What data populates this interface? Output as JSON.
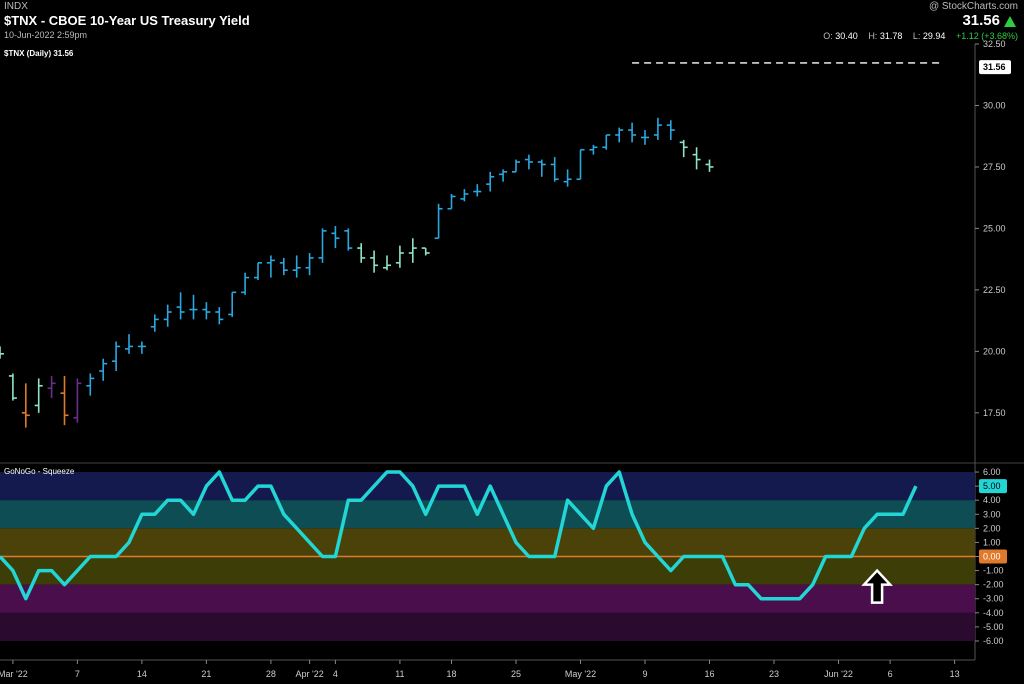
{
  "header": {
    "exchange": "INDX",
    "title": "$TNX - CBOE 10-Year US Treasury Yield",
    "datetime": "10-Jun-2022 2:59pm",
    "copyright": "@ StockCharts.com",
    "last": "31.56",
    "ohlc": {
      "o_label": "O:",
      "o": "30.40",
      "h_label": "H:",
      "h": "31.78",
      "l_label": "L:",
      "l": "29.94",
      "change": "+1.12 (+3.68%)"
    }
  },
  "colors": {
    "background": "#000000",
    "bar_strong_go": "#29a8e0",
    "bar_weak_go": "#8fe4c4",
    "bar_go_fish": "#e07a2a",
    "bar_nogo": "#6a2e8c",
    "go_trend_triangle": "#ff1a1a",
    "go_count_dot": "#22ee22",
    "oscillator_line": "#22d6d6",
    "oscillator_zero": "#e07a2a",
    "squeeze_arrow": "#ffffff"
  },
  "chart_data": [
    {
      "type": "ohlc",
      "title": "$TNX (Daily) 31.56",
      "ylim": [
        15.5,
        32.5
      ],
      "yticks": [
        17.5,
        20,
        22.5,
        25,
        27.5,
        30,
        32.5
      ],
      "ytick_labels": [
        "17.50",
        "20.00",
        "22.50",
        "25.00",
        "27.50",
        "30.00",
        "32.50"
      ],
      "last_price_label": "31.56",
      "x_labels": [
        {
          "i": 1,
          "text": "Mar '22"
        },
        {
          "i": 6,
          "text": "7"
        },
        {
          "i": 11,
          "text": "14"
        },
        {
          "i": 16,
          "text": "21"
        },
        {
          "i": 21,
          "text": "28"
        },
        {
          "i": 24,
          "text": "Apr '22"
        },
        {
          "i": 26,
          "text": "4"
        },
        {
          "i": 31,
          "text": "11"
        },
        {
          "i": 35,
          "text": "18"
        },
        {
          "i": 40,
          "text": "25"
        },
        {
          "i": 45,
          "text": "May '22"
        },
        {
          "i": 50,
          "text": "9"
        },
        {
          "i": 55,
          "text": "16"
        },
        {
          "i": 60,
          "text": "23"
        },
        {
          "i": 65,
          "text": "Jun '22"
        },
        {
          "i": 69,
          "text": "6"
        },
        {
          "i": 74,
          "text": "13"
        }
      ],
      "resistance_level": 31.73,
      "resistance_from_i": 49,
      "resistance_to_i": 73,
      "bars": [
        {
          "o": 20.0,
          "h": 20.2,
          "l": 19.7,
          "c": 19.9,
          "k": "w"
        },
        {
          "o": 19.0,
          "h": 19.1,
          "l": 18.0,
          "c": 18.1,
          "k": "w"
        },
        {
          "o": 17.5,
          "h": 18.7,
          "l": 16.9,
          "c": 17.4,
          "k": "f"
        },
        {
          "o": 17.8,
          "h": 18.9,
          "l": 17.5,
          "c": 18.6,
          "k": "w"
        },
        {
          "o": 18.5,
          "h": 19.0,
          "l": 18.1,
          "c": 18.7,
          "k": "n"
        },
        {
          "o": 18.3,
          "h": 19.0,
          "l": 17.0,
          "c": 17.4,
          "k": "f"
        },
        {
          "o": 17.3,
          "h": 18.9,
          "l": 17.1,
          "c": 18.7,
          "k": "n"
        },
        {
          "o": 18.6,
          "h": 19.1,
          "l": 18.2,
          "c": 18.9,
          "k": "s"
        },
        {
          "o": 19.2,
          "h": 19.7,
          "l": 18.8,
          "c": 19.5,
          "k": "s"
        },
        {
          "o": 19.6,
          "h": 20.4,
          "l": 19.2,
          "c": 20.2,
          "k": "s"
        },
        {
          "o": 20.1,
          "h": 20.7,
          "l": 19.9,
          "c": 20.2,
          "k": "s"
        },
        {
          "o": 20.2,
          "h": 20.4,
          "l": 19.9,
          "c": 20.2,
          "k": "s"
        },
        {
          "o": 21.0,
          "h": 21.5,
          "l": 20.8,
          "c": 21.3,
          "k": "s"
        },
        {
          "o": 21.3,
          "h": 21.9,
          "l": 21.0,
          "c": 21.6,
          "k": "s"
        },
        {
          "o": 21.8,
          "h": 22.4,
          "l": 21.3,
          "c": 21.6,
          "k": "s"
        },
        {
          "o": 21.7,
          "h": 22.3,
          "l": 21.3,
          "c": 21.7,
          "k": "s"
        },
        {
          "o": 21.7,
          "h": 22.0,
          "l": 21.3,
          "c": 21.6,
          "k": "s"
        },
        {
          "o": 21.6,
          "h": 21.8,
          "l": 21.1,
          "c": 21.3,
          "k": "s"
        },
        {
          "o": 21.5,
          "h": 22.4,
          "l": 21.4,
          "c": 22.4,
          "k": "s"
        },
        {
          "o": 22.4,
          "h": 23.2,
          "l": 22.3,
          "c": 23.0,
          "k": "s"
        },
        {
          "o": 23.0,
          "h": 23.6,
          "l": 22.9,
          "c": 23.6,
          "k": "s"
        },
        {
          "o": 23.6,
          "h": 23.9,
          "l": 23.0,
          "c": 23.7,
          "k": "s"
        },
        {
          "o": 23.6,
          "h": 23.8,
          "l": 23.1,
          "c": 23.3,
          "k": "s"
        },
        {
          "o": 23.3,
          "h": 23.9,
          "l": 23.0,
          "c": 23.4,
          "k": "s"
        },
        {
          "o": 23.4,
          "h": 24.0,
          "l": 23.1,
          "c": 23.8,
          "k": "s"
        },
        {
          "o": 23.8,
          "h": 25.0,
          "l": 23.6,
          "c": 24.9,
          "k": "s"
        },
        {
          "o": 24.8,
          "h": 25.1,
          "l": 24.2,
          "c": 24.6,
          "k": "s"
        },
        {
          "o": 24.9,
          "h": 25.0,
          "l": 24.1,
          "c": 24.2,
          "k": "s"
        },
        {
          "o": 24.2,
          "h": 24.4,
          "l": 23.6,
          "c": 23.8,
          "k": "w"
        },
        {
          "o": 23.8,
          "h": 24.1,
          "l": 23.2,
          "c": 23.5,
          "k": "w"
        },
        {
          "o": 23.4,
          "h": 23.9,
          "l": 23.3,
          "c": 23.5,
          "k": "w"
        },
        {
          "o": 23.6,
          "h": 24.3,
          "l": 23.4,
          "c": 24.0,
          "k": "w"
        },
        {
          "o": 24.0,
          "h": 24.6,
          "l": 23.6,
          "c": 24.2,
          "k": "w"
        },
        {
          "o": 24.2,
          "h": 24.2,
          "l": 23.9,
          "c": 24.0,
          "k": "w"
        },
        {
          "o": 24.6,
          "h": 26.0,
          "l": 24.6,
          "c": 25.8,
          "k": "s"
        },
        {
          "o": 25.8,
          "h": 26.4,
          "l": 25.8,
          "c": 26.3,
          "k": "s"
        },
        {
          "o": 26.2,
          "h": 26.6,
          "l": 26.1,
          "c": 26.4,
          "k": "s"
        },
        {
          "o": 26.5,
          "h": 26.8,
          "l": 26.3,
          "c": 26.5,
          "k": "s"
        },
        {
          "o": 26.8,
          "h": 27.3,
          "l": 26.5,
          "c": 27.1,
          "k": "s"
        },
        {
          "o": 27.2,
          "h": 27.4,
          "l": 26.9,
          "c": 27.3,
          "k": "s"
        },
        {
          "o": 27.3,
          "h": 27.8,
          "l": 27.3,
          "c": 27.7,
          "k": "s"
        },
        {
          "o": 27.8,
          "h": 28.0,
          "l": 27.4,
          "c": 27.7,
          "k": "s"
        },
        {
          "o": 27.7,
          "h": 27.8,
          "l": 27.1,
          "c": 27.6,
          "k": "s"
        },
        {
          "o": 27.6,
          "h": 27.9,
          "l": 26.9,
          "c": 27.0,
          "k": "s"
        },
        {
          "o": 26.9,
          "h": 27.4,
          "l": 26.7,
          "c": 27.0,
          "k": "s"
        },
        {
          "o": 27.0,
          "h": 28.2,
          "l": 27.0,
          "c": 28.2,
          "k": "s"
        },
        {
          "o": 28.2,
          "h": 28.4,
          "l": 28.0,
          "c": 28.3,
          "k": "s"
        },
        {
          "o": 28.3,
          "h": 28.8,
          "l": 28.2,
          "c": 28.8,
          "k": "s"
        },
        {
          "o": 28.8,
          "h": 29.1,
          "l": 28.5,
          "c": 29.0,
          "k": "s"
        },
        {
          "o": 29.0,
          "h": 29.3,
          "l": 28.5,
          "c": 28.8,
          "k": "s"
        },
        {
          "o": 28.7,
          "h": 29.0,
          "l": 28.4,
          "c": 28.7,
          "k": "s"
        },
        {
          "o": 28.8,
          "h": 29.5,
          "l": 28.6,
          "c": 29.2,
          "k": "s"
        },
        {
          "o": 29.2,
          "h": 29.4,
          "l": 28.6,
          "c": 29.0,
          "k": "s"
        },
        {
          "o": 28.5,
          "h": 28.6,
          "l": 27.9,
          "c": 28.3,
          "k": "w"
        },
        {
          "o": 28.0,
          "h": 28.3,
          "l": 27.4,
          "c": 27.8,
          "k": "w"
        },
        {
          "o": 27.6,
          "h": 27.8,
          "l": 27.3,
          "c": 27.5,
          "k": "w"
        }
      ],
      "triangles": [],
      "dots": [],
      "labels": []
    },
    {
      "type": "line",
      "title": "GoNoGo - Squeeze",
      "ylim": [
        -6.5,
        6.5
      ],
      "yticks": [
        6,
        5,
        4,
        3,
        2,
        1,
        0,
        -1,
        -2,
        -3,
        -4,
        -5,
        -6
      ],
      "ytick_labels": [
        "6.00",
        "5.00",
        "4.00",
        "3.00",
        "2.00",
        "1.00",
        "0.00",
        "-1.00",
        "-2.00",
        "-3.00",
        "-4.00",
        "-5.00",
        "-6.00"
      ],
      "last_value_label": "5.00",
      "zero_label": "0.00",
      "bands": [
        {
          "from": 4,
          "to": 6,
          "color": "#141a4e"
        },
        {
          "from": 2,
          "to": 4,
          "color": "#0f4d54"
        },
        {
          "from": 0,
          "to": 2,
          "color": "#4a4208"
        },
        {
          "from": -2,
          "to": 0,
          "color": "#3d3d08"
        },
        {
          "from": -4,
          "to": -2,
          "color": "#4b0e4c"
        },
        {
          "from": -6,
          "to": -4,
          "color": "#2a0a2e"
        }
      ],
      "series": [
        {
          "values": [
            0,
            -1,
            -3,
            -1,
            -1,
            -2,
            -1,
            0,
            0,
            0,
            1,
            3,
            3,
            4,
            4,
            3,
            5,
            6,
            4,
            4,
            5,
            5,
            3,
            2,
            1,
            0,
            0,
            4,
            4,
            5,
            6,
            6,
            5,
            3,
            5,
            5,
            5,
            3,
            5,
            3,
            1,
            0,
            0,
            0,
            4,
            3,
            2,
            5,
            6,
            3,
            1,
            0,
            -1,
            0,
            0,
            0,
            0,
            -2,
            -2,
            -3,
            -3,
            -3,
            -3,
            -2,
            0,
            0,
            0,
            2,
            3,
            3,
            3,
            5
          ]
        }
      ],
      "squeeze_arrow_i": 69
    }
  ]
}
